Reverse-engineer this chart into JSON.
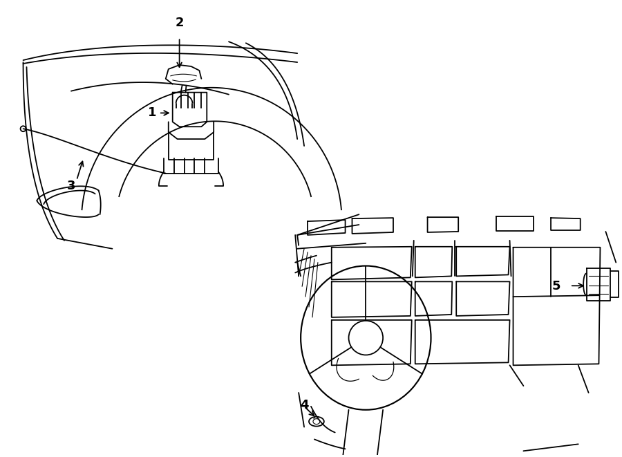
{
  "bg_color": "#ffffff",
  "line_color": "#000000",
  "figsize": [
    9.0,
    6.61
  ],
  "dpi": 100,
  "lw": 1.3
}
